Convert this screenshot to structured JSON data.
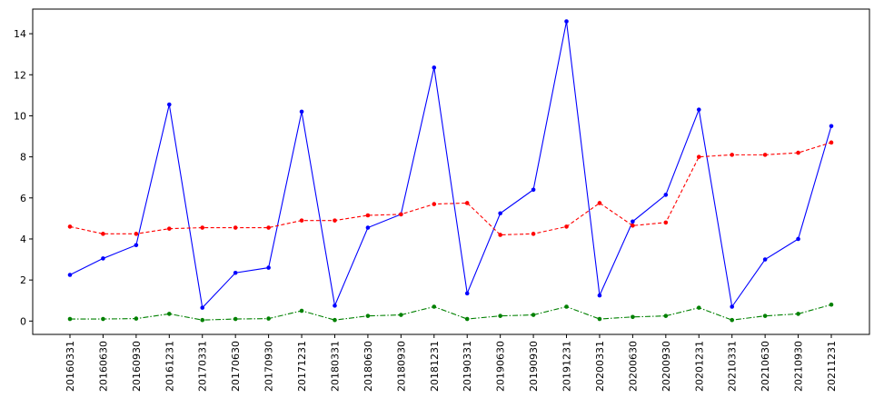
{
  "chart_data": {
    "type": "line",
    "title": "",
    "xlabel": "",
    "ylabel": "",
    "categories": [
      "20160331",
      "20160630",
      "20160930",
      "20161231",
      "20170331",
      "20170630",
      "20170930",
      "20171231",
      "20180331",
      "20180630",
      "20180930",
      "20181231",
      "20190331",
      "20190630",
      "20190930",
      "20191231",
      "20200331",
      "20200630",
      "20200930",
      "20201231",
      "20210331",
      "20210630",
      "20210930",
      "20211231"
    ],
    "ylim": [
      -0.65,
      15.2
    ],
    "yticks": [
      0,
      2,
      4,
      6,
      8,
      10,
      12,
      14
    ],
    "grid": false,
    "legend": "none",
    "series": [
      {
        "color": "#0000ff",
        "style": "solid",
        "values": [
          2.25,
          3.05,
          3.7,
          10.55,
          0.65,
          2.35,
          2.6,
          10.2,
          0.75,
          4.55,
          5.2,
          12.35,
          1.35,
          5.25,
          6.4,
          14.6,
          1.25,
          4.85,
          6.15,
          10.3,
          0.7,
          3.0,
          4.0,
          9.5
        ]
      },
      {
        "color": "#ff0000",
        "style": "dashed",
        "values": [
          4.6,
          4.25,
          4.25,
          4.5,
          4.55,
          4.55,
          4.55,
          4.9,
          4.9,
          5.15,
          5.2,
          5.7,
          5.75,
          4.2,
          4.25,
          4.6,
          5.75,
          4.65,
          4.8,
          8.0,
          8.1,
          8.1,
          8.2,
          8.7
        ]
      },
      {
        "color": "#008000",
        "style": "dashdot",
        "values": [
          0.1,
          0.1,
          0.12,
          0.35,
          0.05,
          0.1,
          0.12,
          0.5,
          0.05,
          0.25,
          0.3,
          0.7,
          0.1,
          0.25,
          0.3,
          0.7,
          0.1,
          0.2,
          0.25,
          0.65,
          0.05,
          0.25,
          0.35,
          0.8
        ]
      }
    ]
  }
}
